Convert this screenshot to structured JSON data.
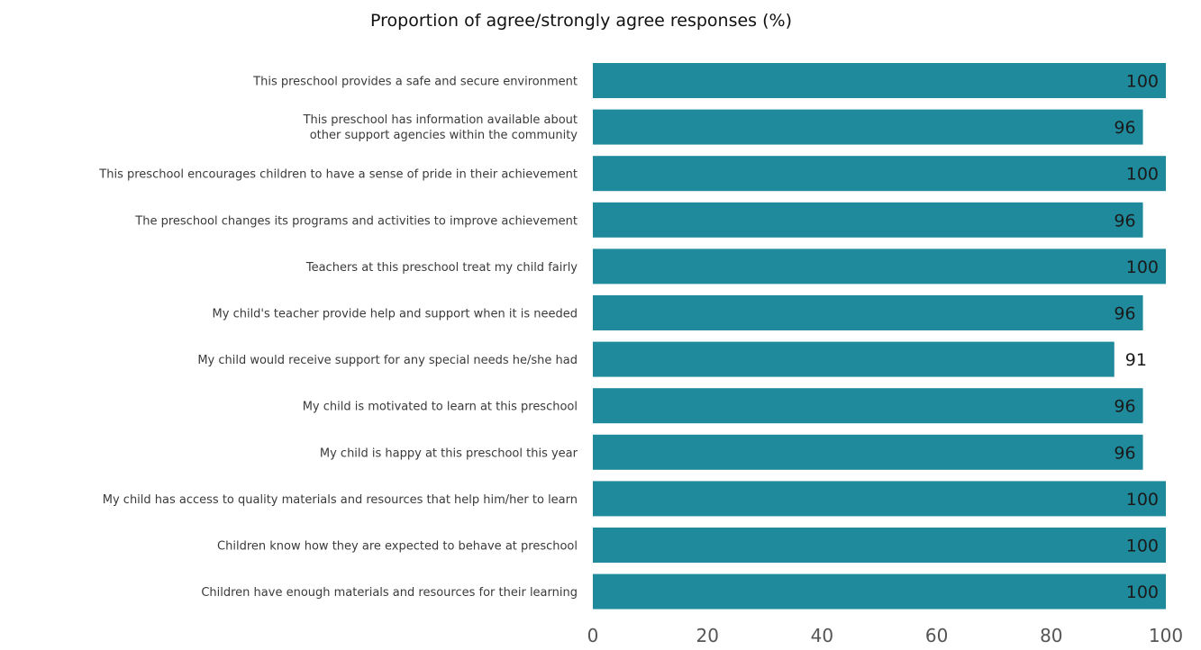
{
  "chart_data": {
    "type": "bar",
    "orientation": "horizontal",
    "title": "Proportion of agree/strongly agree responses (%)",
    "categories": [
      "This preschool provides a safe and secure environment",
      "This preschool has information available about\nother support agencies within the community",
      "This preschool encourages children to have a sense of pride in their achievement",
      "The preschool changes its programs and activities to improve achievement",
      "Teachers at this preschool treat my child fairly",
      "My child's teacher provide help and support when it is needed",
      "My child would receive support for any special needs he/she had",
      "My child is motivated to learn at this preschool",
      "My child is happy at this preschool this year",
      "My child has access to quality materials and resources that help him/her to learn",
      "Children know how they are expected to behave at preschool",
      "Children have enough materials and resources for their learning"
    ],
    "values": [
      100,
      96,
      100,
      96,
      100,
      96,
      91,
      96,
      96,
      100,
      100,
      100
    ],
    "xlim": [
      0,
      100
    ],
    "xticks": [
      0,
      20,
      40,
      60,
      80,
      100
    ],
    "grid": false,
    "legend": "none",
    "bar_color": "#1f8a9c"
  }
}
